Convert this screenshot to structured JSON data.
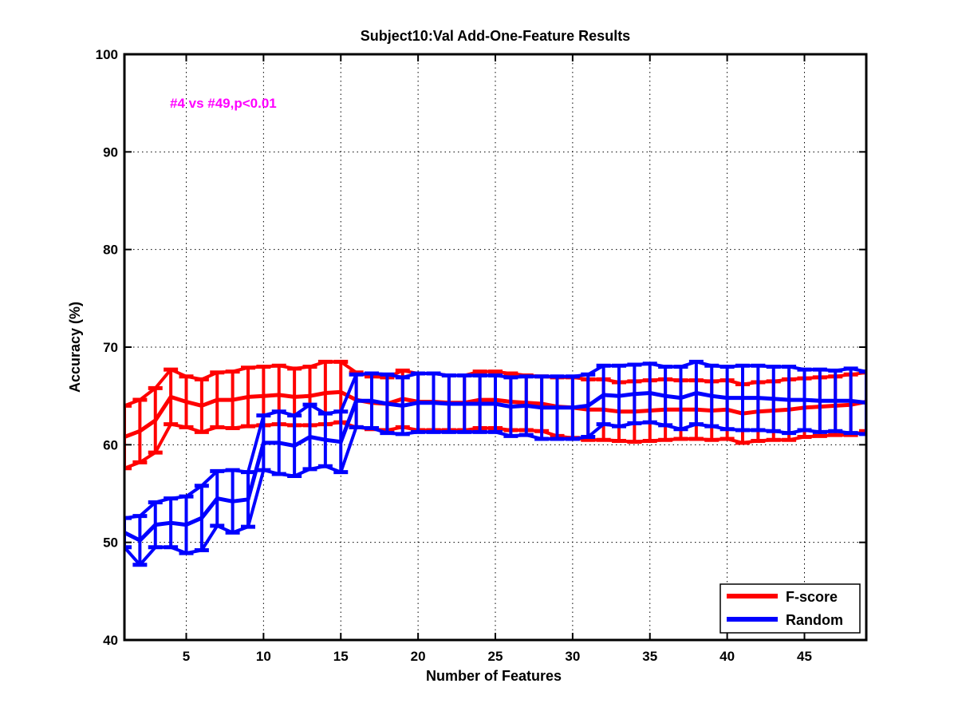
{
  "chart_data": {
    "type": "line",
    "title": "Subject10:Val Add-One-Feature Results",
    "xlabel": "Number of Features",
    "ylabel": "Accuracy (%)",
    "xlim": [
      1,
      49
    ],
    "ylim": [
      40,
      100
    ],
    "xticks": [
      5,
      10,
      15,
      20,
      25,
      30,
      35,
      40,
      45
    ],
    "yticks": [
      40,
      50,
      60,
      70,
      80,
      90,
      100
    ],
    "grid": true,
    "legend_position": "bottom-right",
    "annotation": {
      "text": "#4 vs #49,p<0.01",
      "color": "#ff00ff"
    },
    "series": [
      {
        "name": "F-score",
        "color": "#ff0000",
        "x": [
          1,
          2,
          3,
          4,
          5,
          6,
          7,
          8,
          9,
          10,
          11,
          12,
          13,
          14,
          15,
          16,
          17,
          18,
          19,
          20,
          21,
          22,
          23,
          24,
          25,
          26,
          27,
          28,
          29,
          30,
          31,
          32,
          33,
          34,
          35,
          36,
          37,
          38,
          39,
          40,
          41,
          42,
          43,
          44,
          45,
          46,
          47,
          48,
          49
        ],
        "y": [
          60.8,
          61.4,
          62.5,
          64.9,
          64.4,
          64.0,
          64.6,
          64.6,
          64.9,
          65.0,
          65.1,
          64.9,
          65.0,
          65.3,
          65.4,
          64.6,
          64.3,
          64.2,
          64.7,
          64.4,
          64.4,
          64.3,
          64.3,
          64.6,
          64.6,
          64.4,
          64.3,
          64.2,
          63.9,
          63.8,
          63.6,
          63.6,
          63.4,
          63.4,
          63.5,
          63.6,
          63.6,
          63.6,
          63.5,
          63.6,
          63.2,
          63.4,
          63.5,
          63.6,
          63.8,
          63.9,
          64.0,
          64.1,
          64.4
        ],
        "error": [
          3.2,
          3.2,
          3.3,
          2.8,
          2.6,
          2.7,
          2.8,
          2.9,
          3.0,
          3.0,
          3.0,
          2.9,
          3.0,
          3.2,
          3.1,
          2.8,
          2.7,
          2.7,
          2.9,
          2.9,
          2.9,
          2.8,
          2.8,
          2.9,
          2.9,
          2.9,
          2.8,
          2.8,
          3.0,
          3.1,
          3.1,
          3.1,
          3.0,
          3.1,
          3.1,
          3.1,
          3.0,
          3.0,
          3.0,
          3.0,
          3.0,
          3.0,
          3.0,
          3.1,
          3.0,
          3.0,
          3.0,
          3.1,
          3.0
        ]
      },
      {
        "name": "Random",
        "color": "#0000ff",
        "x": [
          1,
          2,
          3,
          4,
          5,
          6,
          7,
          8,
          9,
          10,
          11,
          12,
          13,
          14,
          15,
          16,
          17,
          18,
          19,
          20,
          21,
          22,
          23,
          24,
          25,
          26,
          27,
          28,
          29,
          30,
          31,
          32,
          33,
          34,
          35,
          36,
          37,
          38,
          39,
          40,
          41,
          42,
          43,
          44,
          45,
          46,
          47,
          48,
          49
        ],
        "y": [
          51.0,
          50.2,
          51.8,
          52.0,
          51.8,
          52.5,
          54.5,
          54.2,
          54.4,
          60.2,
          60.2,
          59.9,
          60.8,
          60.5,
          60.3,
          64.5,
          64.5,
          64.2,
          64.0,
          64.3,
          64.3,
          64.2,
          64.2,
          64.2,
          64.2,
          63.9,
          64.0,
          63.8,
          63.8,
          63.8,
          64.0,
          65.1,
          65.0,
          65.2,
          65.3,
          65.0,
          64.8,
          65.3,
          65.0,
          64.8,
          64.8,
          64.8,
          64.7,
          64.6,
          64.6,
          64.5,
          64.5,
          64.5,
          64.3
        ]
      }
    ],
    "random_error": [
      1.5,
      2.5,
      2.3,
      2.5,
      2.9,
      3.3,
      2.8,
      3.2,
      2.8,
      2.8,
      3.2,
      3.1,
      3.3,
      2.7,
      3.1,
      2.7,
      2.8,
      3.0,
      2.9,
      3.0,
      3.0,
      2.9,
      2.9,
      2.9,
      2.9,
      3.0,
      3.0,
      3.2,
      3.2,
      3.2,
      3.2,
      3.0,
      3.1,
      3.0,
      3.0,
      3.0,
      3.2,
      3.2,
      3.1,
      3.2,
      3.3,
      3.3,
      3.3,
      3.4,
      3.1,
      3.2,
      3.1,
      3.3,
      3.2
    ]
  }
}
